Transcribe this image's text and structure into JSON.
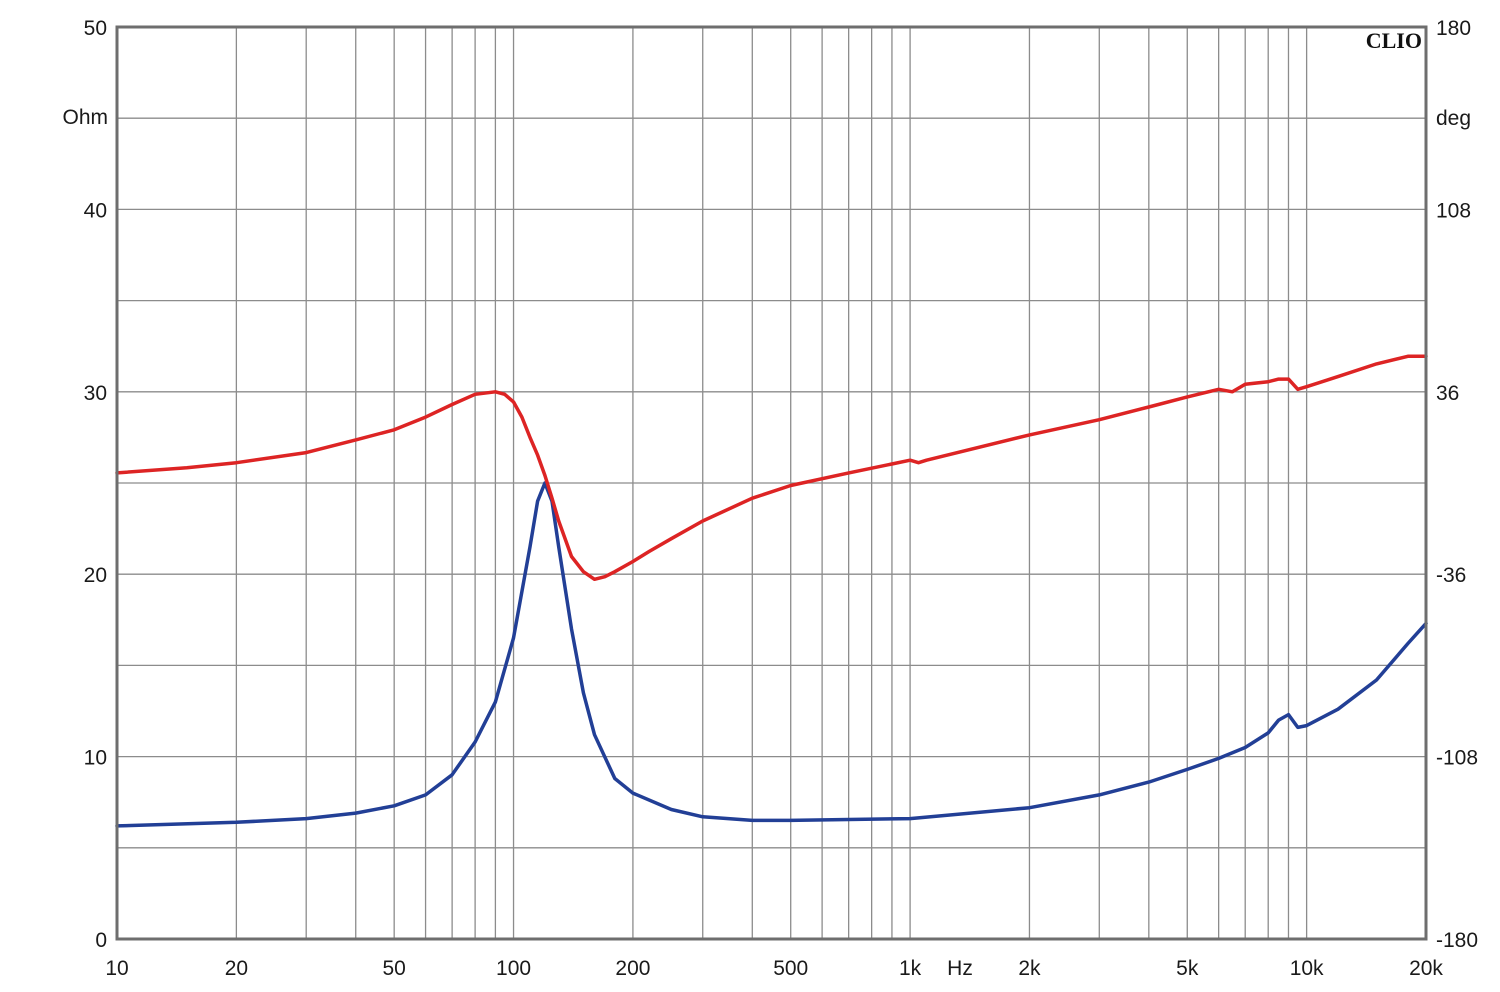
{
  "chart_data": {
    "type": "line",
    "brand": "CLIO",
    "x_scale": "log",
    "xlim": [
      10,
      20000
    ],
    "x_ticks": [
      {
        "value": 10,
        "label": "10"
      },
      {
        "value": 20,
        "label": "20"
      },
      {
        "value": 50,
        "label": "50"
      },
      {
        "value": 100,
        "label": "100"
      },
      {
        "value": 200,
        "label": "200"
      },
      {
        "value": 500,
        "label": "500"
      },
      {
        "value": 1000,
        "label": "1k"
      },
      {
        "value": 2000,
        "label": "2k"
      },
      {
        "value": 5000,
        "label": "5k"
      },
      {
        "value": 10000,
        "label": "10k"
      },
      {
        "value": 20000,
        "label": "20k"
      }
    ],
    "xlabel": "Hz",
    "y_left": {
      "unit": "Ohm",
      "ylim": [
        0,
        50
      ],
      "ticks": [
        {
          "value": 0,
          "label": "0"
        },
        {
          "value": 10,
          "label": "10"
        },
        {
          "value": 20,
          "label": "20"
        },
        {
          "value": 30,
          "label": "30"
        },
        {
          "value": 40,
          "label": "40"
        },
        {
          "value": 50,
          "label": "50"
        }
      ]
    },
    "y_right": {
      "unit": "deg",
      "ylim": [
        -180,
        180
      ],
      "ticks": [
        {
          "value": -180,
          "label": "-180"
        },
        {
          "value": -108,
          "label": "-108"
        },
        {
          "value": -36,
          "label": "-36"
        },
        {
          "value": 36,
          "label": "36"
        },
        {
          "value": 108,
          "label": "108"
        },
        {
          "value": 180,
          "label": "180"
        }
      ]
    },
    "grid": true,
    "series": [
      {
        "key": "impedance",
        "axis": "left",
        "color": "#223f96",
        "x": [
          10,
          20,
          30,
          40,
          50,
          60,
          70,
          80,
          90,
          100,
          110,
          115,
          120,
          125,
          130,
          140,
          150,
          160,
          180,
          200,
          250,
          300,
          400,
          500,
          700,
          1000,
          2000,
          3000,
          4000,
          5000,
          6000,
          7000,
          8000,
          8500,
          9000,
          9500,
          10000,
          12000,
          15000,
          18000,
          20000
        ],
        "y": [
          6.2,
          6.4,
          6.6,
          6.9,
          7.3,
          7.9,
          9.0,
          10.8,
          13.0,
          16.5,
          21.5,
          24.0,
          25.0,
          24.0,
          21.5,
          17.0,
          13.5,
          11.2,
          8.8,
          8.0,
          7.1,
          6.7,
          6.5,
          6.5,
          6.55,
          6.6,
          7.2,
          7.9,
          8.6,
          9.3,
          9.9,
          10.5,
          11.3,
          12.0,
          12.3,
          11.6,
          11.7,
          12.6,
          14.2,
          16.2,
          17.3
        ]
      },
      {
        "key": "phase",
        "axis": "right",
        "color": "#dd2424",
        "x": [
          10,
          15,
          20,
          30,
          40,
          50,
          60,
          70,
          80,
          90,
          95,
          100,
          105,
          110,
          115,
          120,
          125,
          130,
          140,
          150,
          160,
          170,
          180,
          200,
          220,
          250,
          300,
          400,
          500,
          700,
          900,
          1000,
          1050,
          1100,
          2000,
          3000,
          4000,
          5000,
          6000,
          6500,
          7000,
          8000,
          8500,
          9000,
          9500,
          10000,
          12000,
          15000,
          18000,
          20000
        ],
        "y": [
          4,
          6,
          8,
          12,
          17,
          21,
          26,
          31,
          35,
          36,
          35,
          32,
          26,
          18,
          11,
          3,
          -6,
          -15,
          -29,
          -35,
          -38,
          -37,
          -35,
          -31,
          -27,
          -22,
          -15,
          -6,
          -1,
          4,
          7.5,
          9,
          8,
          9,
          19,
          25,
          30,
          34,
          37,
          36,
          39,
          40,
          41,
          41,
          37,
          38,
          42,
          47,
          50,
          50
        ]
      }
    ]
  }
}
